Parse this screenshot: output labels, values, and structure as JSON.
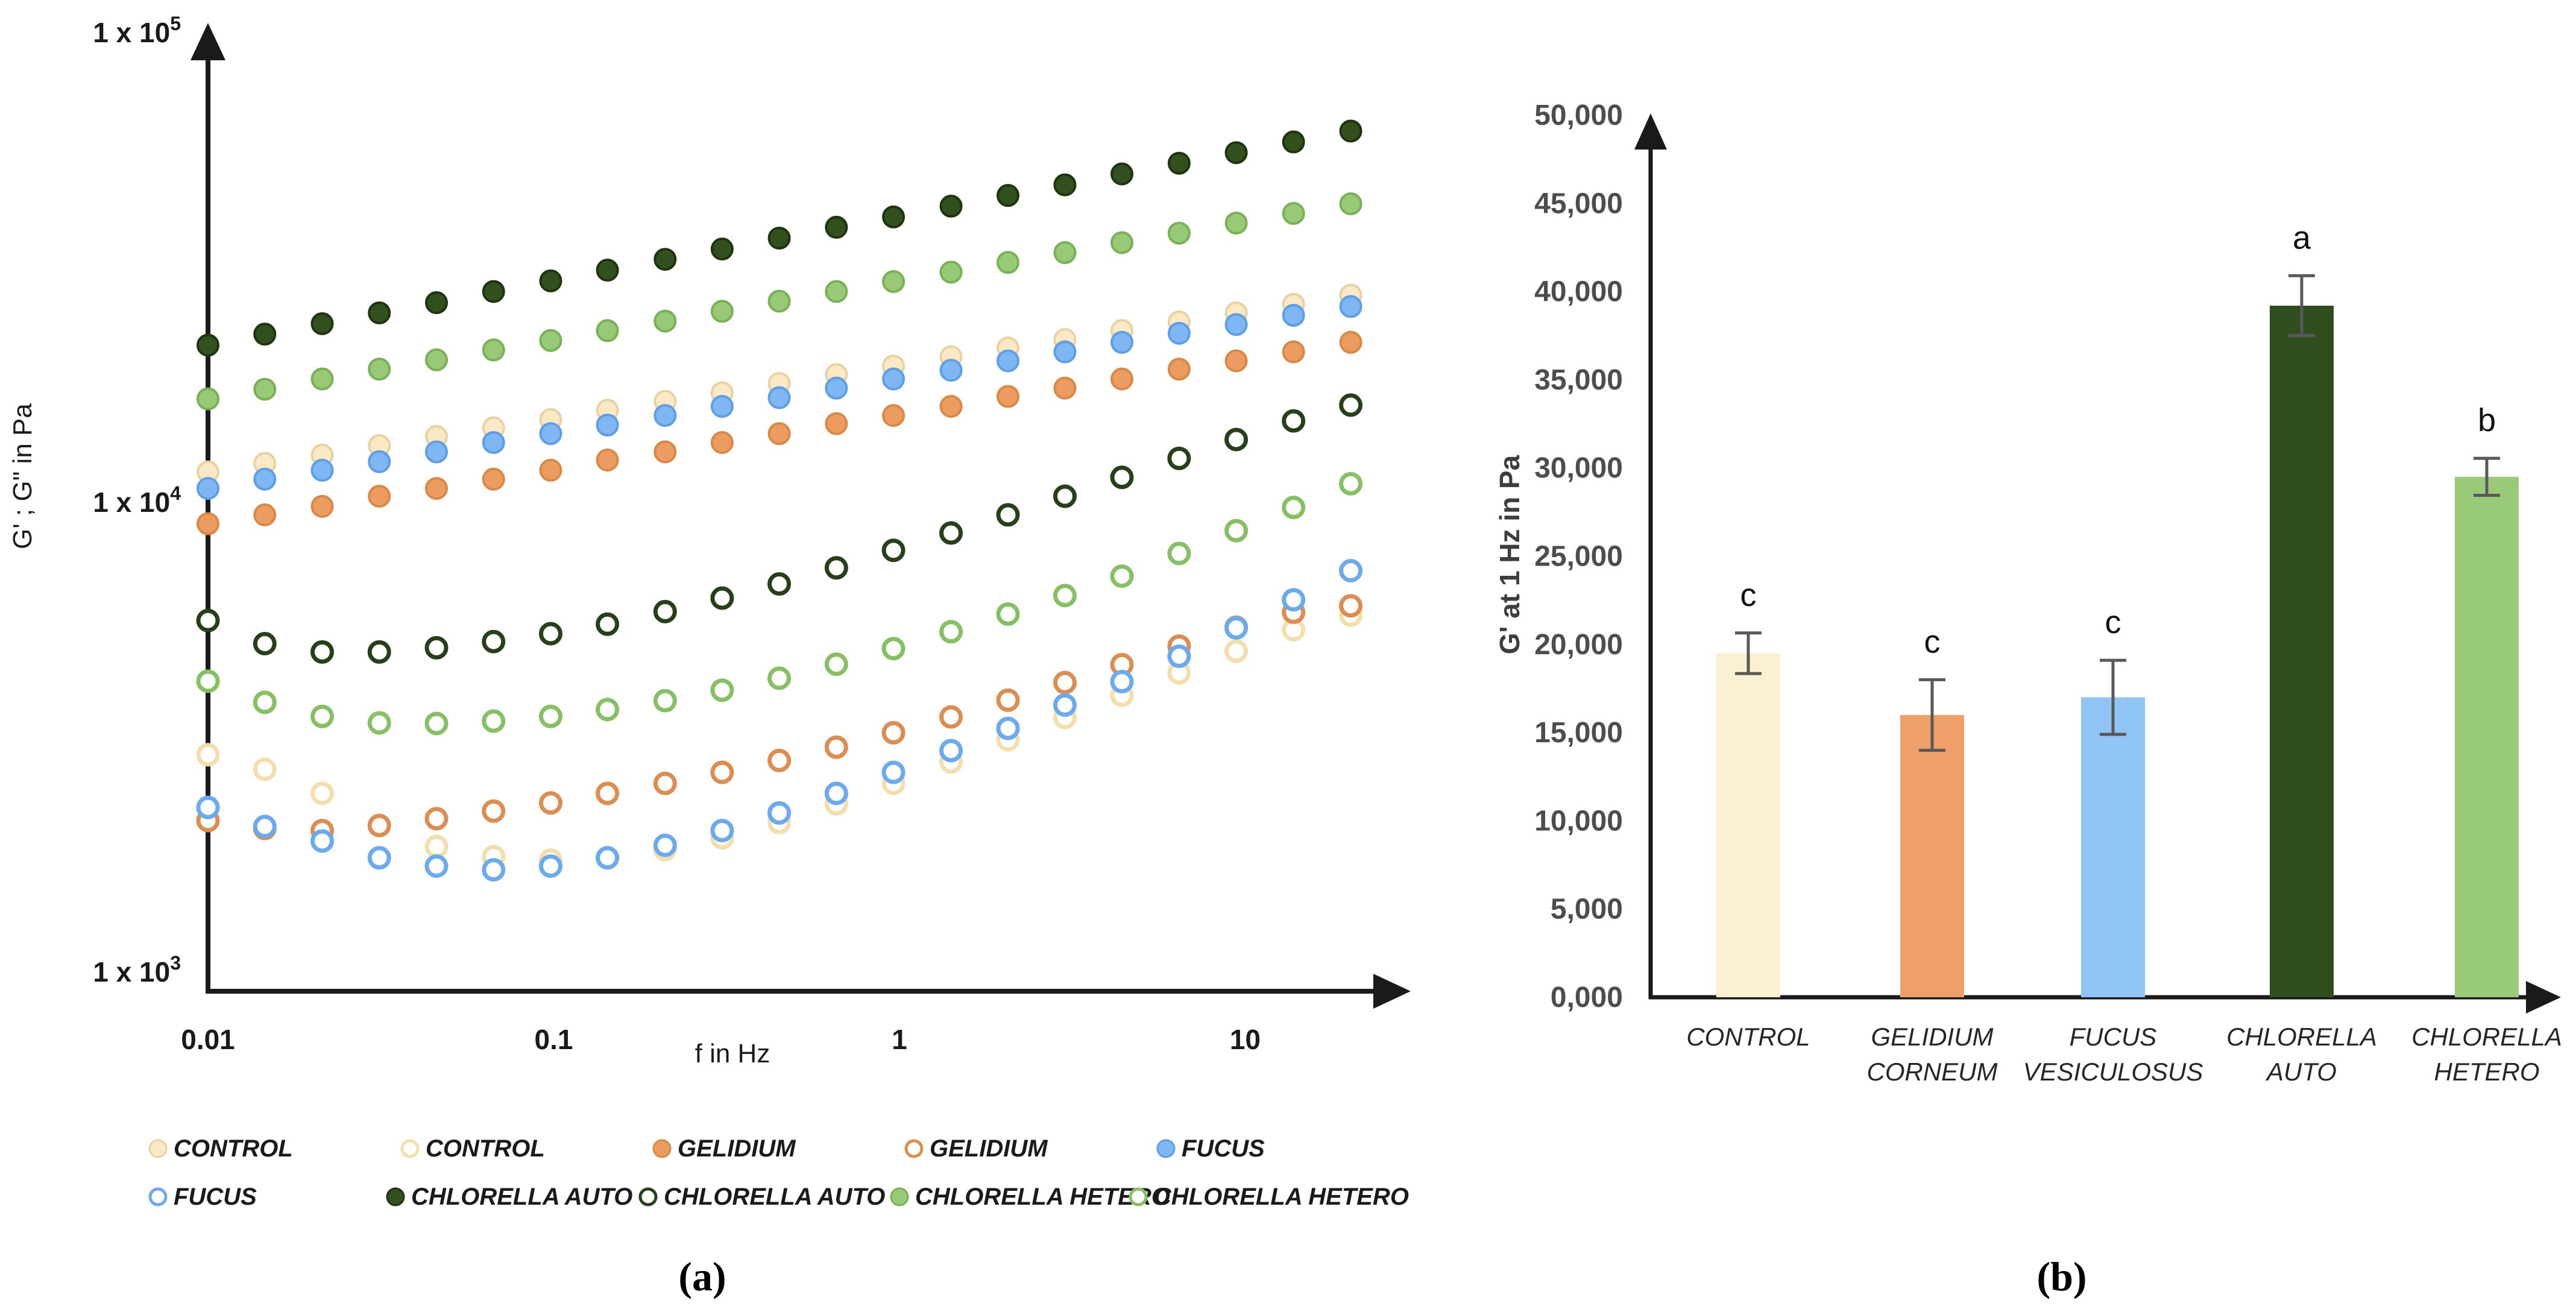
{
  "figure": {
    "caption_a": "(a)",
    "caption_b": "(b)"
  },
  "colors": {
    "cream": {
      "fill": "#FAE9C4",
      "edge": "#E8D3A0",
      "ring": "#F3DFAC",
      "bar": "#FBF0D2"
    },
    "orange": {
      "fill": "#EC9C61",
      "edge": "#D98945",
      "ring": "#DE8D50",
      "bar": "#EFA06A"
    },
    "blue": {
      "fill": "#7EB7F3",
      "edge": "#5D9FE6",
      "ring": "#6AAAEE",
      "bar": "#8FC4F5"
    },
    "darkgreen": {
      "fill": "#31501E",
      "edge": "#1E3510",
      "ring": "#26411A",
      "bar": "#2F4D1D"
    },
    "green": {
      "fill": "#98C977",
      "edge": "#78B254",
      "ring": "#85C063",
      "bar": "#99CA78"
    },
    "error_bar": "#595959",
    "axis": "#1a1a1a",
    "tick_text_a": "#1a1a1a",
    "tick_text_b": "#4d4d4d",
    "category_text": "#262626"
  },
  "panel_a": {
    "y_axis": {
      "title": "G' ; G\" in Pa",
      "ticks": [
        {
          "base": "1 x 10",
          "exp": "5",
          "value": 100000
        },
        {
          "base": "1 x 10",
          "exp": "4",
          "value": 10000
        },
        {
          "base": "1 x 10",
          "exp": "3",
          "value": 1000
        }
      ]
    },
    "x_axis": {
      "title": "f in Hz",
      "ticks": [
        {
          "label": "0.01",
          "value": 0.01
        },
        {
          "label": "0.1",
          "value": 0.1
        },
        {
          "label": "1",
          "value": 1
        },
        {
          "label": "10",
          "value": 10
        }
      ]
    },
    "legend": {
      "row1": [
        {
          "label": "CONTROL",
          "marker": "filled",
          "color": "cream"
        },
        {
          "label": "CONTROL",
          "marker": "open",
          "color": "cream"
        },
        {
          "label": "GELIDIUM",
          "marker": "filled",
          "color": "orange"
        },
        {
          "label": "GELIDIUM",
          "marker": "open",
          "color": "orange"
        },
        {
          "label": "FUCUS",
          "marker": "filled",
          "color": "blue"
        }
      ],
      "row2": [
        {
          "label": "FUCUS",
          "marker": "open",
          "color": "blue"
        },
        {
          "label": "CHLORELLA AUTO",
          "marker": "filled",
          "color": "darkgreen"
        },
        {
          "label": "CHLORELLA AUTO",
          "marker": "open",
          "color": "darkgreen"
        },
        {
          "label": "CHLORELLA HETERO",
          "marker": "filled",
          "color": "green"
        },
        {
          "label": "CHLORELLA HETERO",
          "marker": "open",
          "color": "green"
        }
      ]
    }
  },
  "panel_b": {
    "y_axis": {
      "title": "G' at 1 Hz in Pa",
      "tick_labels": [
        "0,000",
        "5,000",
        "10,000",
        "15,000",
        "20,000",
        "25,000",
        "30,000",
        "35,000",
        "40,000",
        "45,000",
        "50,000"
      ],
      "tick_values": [
        0,
        5000,
        10000,
        15000,
        20000,
        25000,
        30000,
        35000,
        40000,
        45000,
        50000
      ]
    }
  },
  "chart_data": [
    {
      "type": "scatter",
      "title": "",
      "xlabel": "f in Hz",
      "ylabel": "G' ; G\" in Pa",
      "x_scale": "log",
      "y_scale": "log",
      "xlim": [
        0.01,
        20
      ],
      "ylim": [
        1000,
        100000
      ],
      "grid": false,
      "legend_position": "below",
      "frequencies_hz": [
        0.01,
        0.0146,
        0.0214,
        0.0313,
        0.0458,
        0.067,
        0.098,
        0.143,
        0.21,
        0.307,
        0.449,
        0.657,
        0.961,
        1.41,
        2.06,
        3.01,
        4.4,
        6.44,
        9.42,
        13.8,
        20.2
      ],
      "draw_order": [
        "control_gp",
        "gelidium_gp",
        "fucus_gp",
        "hetero_gp",
        "auto_gp",
        "control_gpp",
        "gelidium_gpp",
        "fucus_gpp",
        "hetero_gpp",
        "auto_gpp"
      ],
      "series": {
        "control_gp": {
          "name": "CONTROL (G')",
          "marker": "filled",
          "color": "cream",
          "values": [
            11600,
            12100,
            12600,
            13200,
            13800,
            14400,
            15000,
            15700,
            16400,
            17100,
            17900,
            18700,
            19500,
            20400,
            21300,
            22200,
            23200,
            24200,
            25300,
            26400,
            27600
          ]
        },
        "gelidium_gp": {
          "name": "GELIDIUM (G')",
          "marker": "filled",
          "color": "orange",
          "values": [
            9000,
            9400,
            9800,
            10300,
            10700,
            11200,
            11700,
            12300,
            12800,
            13400,
            14000,
            14700,
            15300,
            16000,
            16800,
            17500,
            18300,
            19200,
            20000,
            20900,
            21900
          ]
        },
        "fucus_gp": {
          "name": "FUCUS (G')",
          "marker": "filled",
          "color": "blue",
          "values": [
            10700,
            11200,
            11700,
            12200,
            12800,
            13400,
            14000,
            14600,
            15300,
            16000,
            16700,
            17500,
            18300,
            19100,
            20000,
            20900,
            21900,
            22900,
            23900,
            25000,
            26100
          ]
        },
        "auto_gp": {
          "name": "CHLORELLA AUTO (G')",
          "marker": "filled",
          "color": "darkgreen",
          "values": [
            21600,
            22800,
            24000,
            25300,
            26600,
            28100,
            29600,
            31200,
            32900,
            34600,
            36500,
            38500,
            40500,
            42700,
            45000,
            47400,
            50000,
            52700,
            55500,
            58500,
            61700
          ]
        },
        "hetero_gp": {
          "name": "CHLORELLA HETERO (G')",
          "marker": "filled",
          "color": "green",
          "values": [
            16600,
            17400,
            18300,
            19200,
            20100,
            21100,
            22100,
            23200,
            24300,
            25500,
            26800,
            28100,
            29500,
            30900,
            32400,
            34000,
            35700,
            37400,
            39300,
            41200,
            43200
          ]
        },
        "control_gpp": {
          "name": "CONTROL (G\")",
          "marker": "open",
          "color": "cream",
          "values": [
            2900,
            2700,
            2400,
            2050,
            1850,
            1760,
            1730,
            1750,
            1820,
            1930,
            2080,
            2280,
            2520,
            2800,
            3120,
            3480,
            3880,
            4330,
            4820,
            5350,
            5750
          ]
        },
        "gelidium_gpp": {
          "name": "GELIDIUM (G\")",
          "marker": "open",
          "color": "orange",
          "values": [
            2100,
            2020,
            2000,
            2050,
            2120,
            2200,
            2290,
            2400,
            2520,
            2660,
            2820,
            3010,
            3230,
            3490,
            3790,
            4130,
            4510,
            4940,
            5420,
            5830,
            6020
          ]
        },
        "fucus_gpp": {
          "name": "FUCUS (G\")",
          "marker": "open",
          "color": "blue",
          "values": [
            2240,
            2040,
            1900,
            1750,
            1680,
            1650,
            1680,
            1750,
            1860,
            2000,
            2180,
            2400,
            2660,
            2960,
            3300,
            3700,
            4150,
            4700,
            5400,
            6200,
            7150
          ]
        },
        "auto_gpp": {
          "name": "CHLORELLA AUTO (G\")",
          "marker": "open",
          "color": "darkgreen",
          "values": [
            5600,
            5000,
            4800,
            4800,
            4900,
            5050,
            5250,
            5500,
            5850,
            6250,
            6700,
            7250,
            7900,
            8600,
            9400,
            10300,
            11300,
            12400,
            13600,
            14900,
            16100
          ]
        },
        "hetero_gpp": {
          "name": "CHLORELLA HETERO (G\")",
          "marker": "open",
          "color": "green",
          "values": [
            4160,
            3750,
            3500,
            3390,
            3380,
            3420,
            3500,
            3620,
            3780,
            3980,
            4220,
            4520,
            4880,
            5300,
            5780,
            6330,
            6960,
            7780,
            8700,
            9750,
            10950
          ]
        }
      }
    },
    {
      "type": "bar",
      "title": "",
      "xlabel": "",
      "ylabel": "G' at 1 Hz in Pa",
      "ylim": [
        0,
        50000
      ],
      "grid": false,
      "categories_line1": [
        "CONTROL",
        "GELIDIUM",
        "FUCUS",
        "CHLORELLA",
        "CHLORELLA"
      ],
      "categories_line2": [
        "",
        "CORNEUM",
        "VESICULOSUS",
        "AUTO",
        "HETERO"
      ],
      "values": [
        19500,
        16000,
        17000,
        39200,
        29500
      ],
      "errors": [
        1150,
        2000,
        2100,
        1700,
        1050
      ],
      "sig_letters": [
        "c",
        "c",
        "c",
        "a",
        "b"
      ],
      "bar_colors": [
        "cream",
        "orange",
        "blue",
        "darkgreen",
        "green"
      ]
    }
  ]
}
